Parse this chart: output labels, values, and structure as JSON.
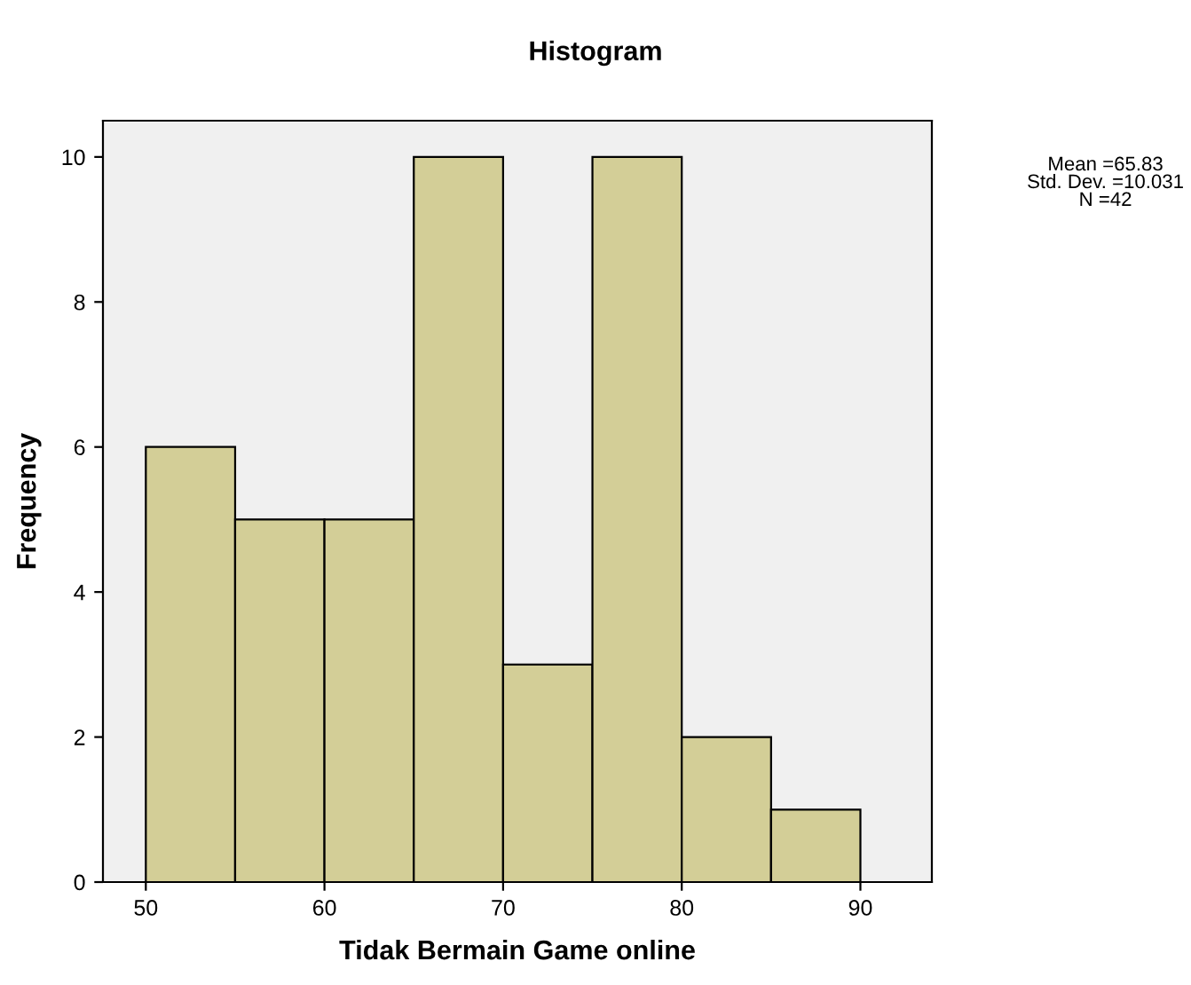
{
  "chart_data": {
    "type": "histogram",
    "title": "Histogram",
    "xlabel": "Tidak Bermain Game online",
    "ylabel": "Frequency",
    "bins": [
      50,
      55,
      60,
      65,
      70,
      75,
      80,
      85,
      90
    ],
    "values": [
      6,
      5,
      5,
      10,
      3,
      10,
      2,
      1
    ],
    "color": "#d3ce97",
    "xlim": [
      47.6,
      94
    ],
    "xticks": [
      50,
      60,
      70,
      80,
      90
    ],
    "ylim": [
      0,
      10.5
    ],
    "yticks": [
      0,
      2,
      4,
      6,
      8,
      10
    ],
    "grid": false,
    "annotations": [
      "Mean =65.83\nStd. Dev. =10.031\nN =42"
    ]
  }
}
